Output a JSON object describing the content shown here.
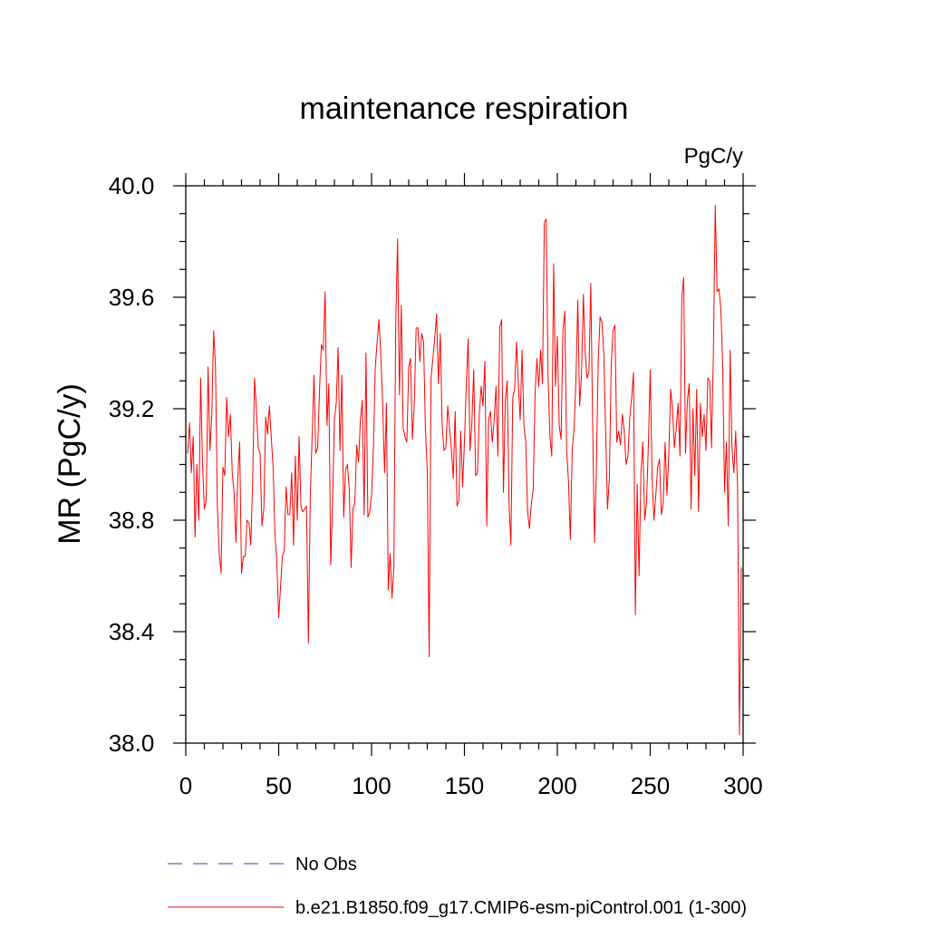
{
  "chart_data": {
    "type": "line",
    "title": "maintenance respiration",
    "units": "PgC/y",
    "xlabel": "",
    "ylabel": "MR  (PgC/y)",
    "xlim": [
      0,
      300
    ],
    "ylim": [
      38.0,
      40.0
    ],
    "x_ticks": [
      0,
      50,
      100,
      150,
      200,
      250,
      300
    ],
    "x_tick_labels": [
      "0",
      "50",
      "100",
      "150",
      "200",
      "250",
      "300"
    ],
    "y_ticks": [
      38.0,
      38.4,
      38.8,
      39.2,
      39.6,
      40.0
    ],
    "y_tick_labels": [
      "38.0",
      "38.4",
      "38.8",
      "39.2",
      "39.6",
      "40.0"
    ],
    "legend_position": "bottom",
    "series": [
      {
        "name": "No Obs",
        "color": "#6a5acd",
        "style": "dashed",
        "values": []
      },
      {
        "name": "b.e21.B1850.f09_g17.CMIP6-esm-piControl.001 (1-300)",
        "color": "#ff0000",
        "style": "solid",
        "x_start": 1,
        "x_step": 1,
        "values": [
          39.04,
          39.15,
          38.97,
          39.1,
          38.74,
          39.0,
          38.8,
          39.31,
          39.0,
          38.84,
          38.87,
          39.35,
          39.05,
          39.18,
          39.48,
          39.35,
          38.85,
          38.68,
          38.61,
          38.99,
          38.96,
          39.24,
          39.1,
          39.18,
          38.97,
          38.9,
          38.72,
          38.95,
          39.08,
          38.61,
          38.67,
          38.67,
          38.8,
          38.79,
          38.71,
          38.94,
          39.31,
          39.2,
          39.06,
          39.04,
          38.78,
          38.84,
          39.17,
          39.11,
          39.21,
          39.1,
          38.99,
          38.75,
          38.65,
          38.45,
          38.56,
          38.67,
          38.69,
          38.92,
          38.82,
          38.82,
          38.97,
          38.71,
          39.03,
          38.8,
          39.1,
          38.85,
          38.83,
          38.84,
          38.85,
          38.36,
          38.88,
          39.1,
          39.32,
          39.04,
          39.06,
          39.27,
          39.43,
          39.41,
          39.62,
          39.14,
          39.29,
          38.64,
          38.86,
          39.16,
          39.22,
          39.42,
          39.05,
          39.32,
          38.81,
          38.98,
          39.0,
          38.91,
          38.63,
          38.84,
          38.86,
          39.07,
          39.01,
          39.16,
          39.23,
          38.82,
          39.4,
          38.81,
          38.83,
          38.89,
          39.06,
          39.35,
          39.44,
          39.52,
          39.39,
          39.21,
          38.97,
          39.22,
          38.55,
          38.68,
          38.52,
          38.63,
          39.5,
          39.81,
          39.25,
          39.57,
          39.13,
          39.1,
          39.08,
          39.35,
          39.38,
          39.09,
          39.22,
          39.49,
          39.49,
          39.37,
          39.47,
          39.44,
          39.12,
          38.98,
          38.31,
          39.31,
          39.38,
          39.45,
          39.54,
          39.29,
          39.47,
          39.14,
          39.05,
          39.06,
          39.21,
          39.13,
          39.05,
          38.95,
          39.19,
          38.85,
          38.87,
          39.12,
          38.92,
          39.08,
          39.29,
          39.45,
          39.05,
          39.15,
          39.34,
          38.96,
          38.97,
          39.18,
          39.28,
          39.21,
          39.37,
          38.78,
          39.16,
          39.19,
          39.08,
          39.16,
          39.28,
          39.03,
          39.49,
          39.52,
          38.9,
          39.23,
          39.3,
          38.86,
          38.71,
          39.24,
          39.27,
          39.44,
          39.29,
          39.16,
          39.41,
          39.14,
          39.08,
          38.83,
          38.77,
          38.86,
          38.91,
          39.25,
          39.38,
          39.28,
          39.41,
          39.29,
          39.87,
          39.88,
          39.32,
          39.1,
          39.03,
          39.72,
          39.28,
          39.46,
          39.14,
          39.09,
          39.48,
          39.55,
          39.05,
          38.94,
          38.73,
          39.05,
          39.13,
          39.3,
          39.59,
          39.21,
          39.32,
          39.61,
          39.4,
          39.31,
          39.33,
          39.65,
          39.15,
          38.72,
          38.98,
          39.37,
          39.53,
          39.51,
          39.4,
          39.12,
          38.84,
          38.95,
          39.36,
          39.48,
          39.5,
          39.08,
          39.12,
          39.07,
          39.18,
          39.12,
          39.0,
          39.03,
          39.17,
          39.24,
          39.33,
          38.46,
          38.93,
          38.6,
          38.97,
          39.08,
          38.8,
          38.86,
          39.07,
          39.34,
          38.95,
          38.8,
          38.89,
          38.99,
          39.02,
          38.82,
          38.86,
          39.08,
          38.89,
          39.04,
          39.27,
          39.2,
          39.06,
          39.13,
          39.22,
          39.03,
          39.6,
          39.67,
          39.04,
          39.23,
          39.29,
          38.84,
          39.2,
          38.96,
          39.27,
          38.83,
          39.22,
          39.1,
          39.18,
          39.05,
          39.31,
          39.3,
          39.06,
          39.4,
          39.93,
          39.62,
          39.63,
          39.56,
          39.36,
          38.9,
          39.08,
          38.78,
          39.41,
          39.06,
          38.97,
          39.12,
          38.92,
          38.03,
          38.63
        ]
      }
    ]
  }
}
